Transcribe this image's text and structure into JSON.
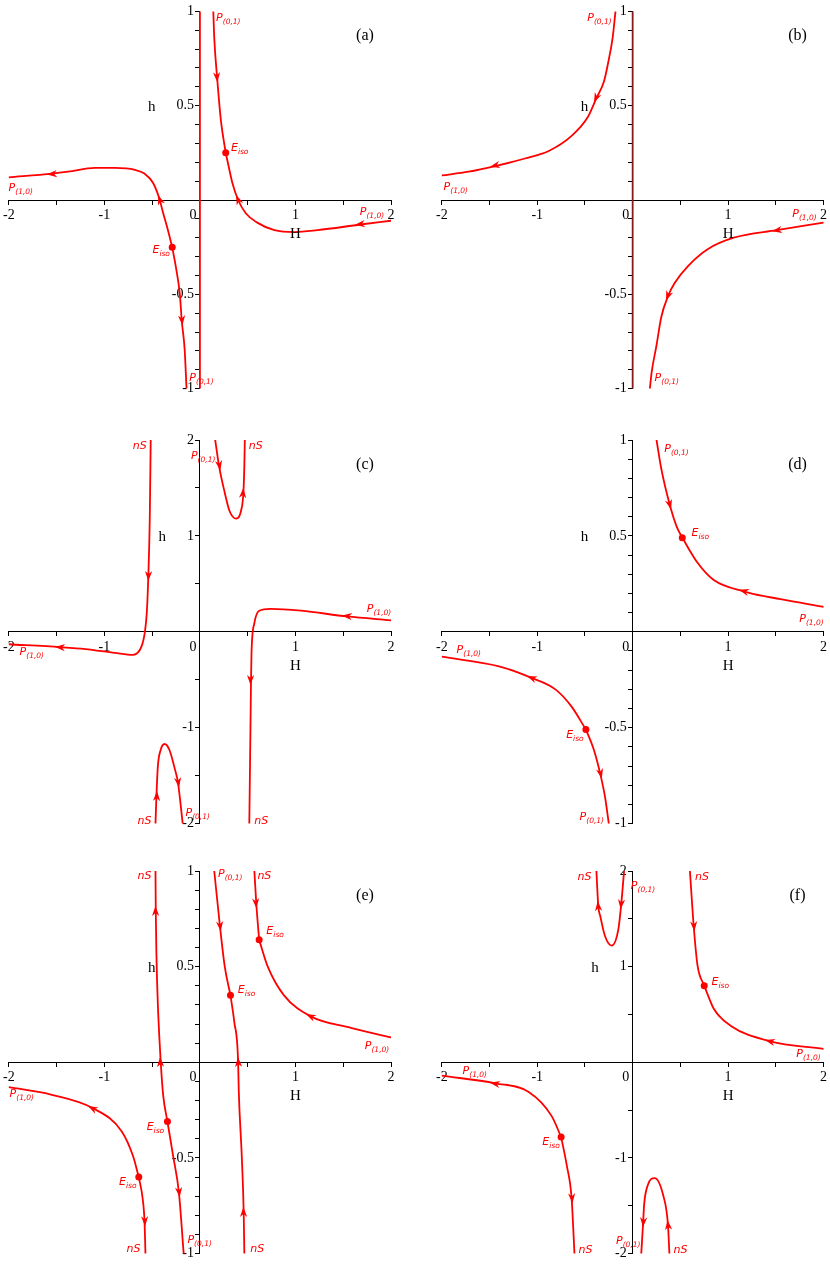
{
  "chart_data": [
    {
      "type": "line",
      "title": "(a)",
      "xlabel": "H",
      "ylabel": "h",
      "xlim": [
        -2,
        2
      ],
      "ylim": [
        -1,
        1
      ],
      "xticks": [
        -2,
        {
          "value": -1.5,
          "label": null
        },
        -1,
        {
          "value": -0.5,
          "label": null
        },
        0,
        {
          "value": 0.5,
          "label": null
        },
        1,
        {
          "value": 1.5,
          "label": null
        },
        2
      ],
      "yticks": [
        -1,
        {
          "value": -0.9,
          "label": null
        },
        {
          "value": -0.8,
          "label": null
        },
        {
          "value": -0.7,
          "label": null
        },
        {
          "value": -0.6,
          "label": null
        },
        -0.5,
        {
          "value": -0.4,
          "label": null
        },
        {
          "value": -0.3,
          "label": null
        },
        {
          "value": -0.2,
          "label": null
        },
        {
          "value": -0.1,
          "label": null
        },
        {
          "value": 0.1,
          "label": null
        },
        {
          "value": 0.2,
          "label": null
        },
        {
          "value": 0.3,
          "label": null
        },
        {
          "value": 0.4,
          "label": null
        },
        0.5,
        {
          "value": 0.6,
          "label": null
        },
        {
          "value": 0.7,
          "label": null
        },
        {
          "value": 0.8,
          "label": null
        },
        {
          "value": 0.9,
          "label": null
        },
        1
      ],
      "series": [
        {
          "color": "#ff0000",
          "x": [
            -0.29,
            -0.34,
            -0.39,
            -0.42,
            -0.49,
            -0.58,
            -0.68,
            -0.89,
            -1.1,
            -1.38,
            -1.55,
            -2
          ],
          "values": [
            -0.25,
            -0.15,
            -0.06,
            0,
            0.09,
            0.14,
            0.16,
            0.17,
            0.17,
            0.15,
            0.14,
            0.12
          ]
        },
        {
          "color": "#ff0000",
          "x": [
            -0.29,
            -0.25,
            -0.21,
            -0.19,
            -0.16,
            -0.14
          ],
          "values": [
            -0.25,
            -0.36,
            -0.5,
            -0.64,
            -0.79,
            -1
          ]
        },
        {
          "color": "#ff0000",
          "x": [
            0.14,
            0.15,
            0.18,
            0.22,
            0.27
          ],
          "values": [
            1,
            0.86,
            0.65,
            0.42,
            0.25
          ]
        },
        {
          "color": "#ff0000",
          "x": [
            2,
            1.68,
            1.23,
            0.99,
            0.78,
            0.6,
            0.48,
            0.4,
            0.34,
            0.3,
            0.27
          ],
          "values": [
            -0.11,
            -0.13,
            -0.16,
            -0.17,
            -0.16,
            -0.12,
            -0.07,
            0,
            0.09,
            0.18,
            0.25
          ]
        },
        {
          "type": "scatter",
          "marker": "circle",
          "color": "#ff0000",
          "x": [
            -0.29,
            0.27
          ],
          "values": [
            -0.25,
            0.25
          ]
        },
        {
          "color": "#ff0000",
          "x": [
            0,
            0
          ],
          "values": [
            -1,
            1
          ]
        }
      ],
      "annotations": [
        {
          "text": "P$_{(0,1)}$",
          "x": 0.14,
          "y": 1
        },
        {
          "text": "E$_{iso}$",
          "x": 0.27,
          "y": 0.25
        },
        {
          "text": "P$_{(1,0)}$",
          "x": -2,
          "y": 0.12
        },
        {
          "text": "P$_{(1,0)}$",
          "x": 2,
          "y": -0.11
        },
        {
          "text": "E$_{iso}$",
          "x": -0.29,
          "y": -0.25
        },
        {
          "text": "P$_{(0,1)}$",
          "x": -0.14,
          "y": -1
        }
      ]
    },
    {
      "type": "line",
      "title": "(b)",
      "xlabel": "H",
      "ylabel": "h",
      "xlim": [
        -2,
        2
      ],
      "ylim": [
        -1,
        1
      ],
      "xticks": [
        -2,
        {
          "value": -1.5,
          "label": null
        },
        -1,
        {
          "value": -0.5,
          "label": null
        },
        0,
        {
          "value": 0.5,
          "label": null
        },
        1,
        {
          "value": 1.5,
          "label": null
        },
        2
      ],
      "yticks": [
        -1,
        {
          "value": -0.9,
          "label": null
        },
        {
          "value": -0.8,
          "label": null
        },
        {
          "value": -0.7,
          "label": null
        },
        {
          "value": -0.6,
          "label": null
        },
        -0.5,
        {
          "value": -0.4,
          "label": null
        },
        {
          "value": -0.3,
          "label": null
        },
        {
          "value": -0.2,
          "label": null
        },
        {
          "value": -0.1,
          "label": null
        },
        {
          "value": 0.1,
          "label": null
        },
        {
          "value": 0.2,
          "label": null
        },
        {
          "value": 0.3,
          "label": null
        },
        {
          "value": 0.4,
          "label": null
        },
        0.5,
        {
          "value": 0.6,
          "label": null
        },
        {
          "value": 0.7,
          "label": null
        },
        {
          "value": 0.8,
          "label": null
        },
        {
          "value": 0.9,
          "label": null
        },
        1
      ],
      "series": [
        {
          "color": "#ff0000",
          "x": [
            -0.18,
            -0.21,
            -0.26,
            -0.3,
            -0.38,
            -0.47,
            -0.64,
            -0.88,
            -1.13,
            -1.44,
            -1.72,
            -2
          ],
          "values": [
            1,
            0.86,
            0.72,
            0.63,
            0.54,
            0.44,
            0.34,
            0.26,
            0.22,
            0.18,
            0.15,
            0.13
          ]
        },
        {
          "color": "#ff0000",
          "x": [
            2,
            1.51,
            1.06,
            0.79,
            0.58,
            0.44,
            0.37,
            0.3,
            0.25,
            0.2,
            0.18
          ],
          "values": [
            -0.12,
            -0.16,
            -0.2,
            -0.26,
            -0.35,
            -0.44,
            -0.51,
            -0.62,
            -0.77,
            -0.91,
            -1
          ]
        },
        {
          "color": "#8b1a1a",
          "x": [
            0,
            0
          ],
          "values": [
            -1,
            1
          ]
        }
      ],
      "annotations": [
        {
          "text": "P$_{(0,1)}$",
          "x": -0.18,
          "y": 1
        },
        {
          "text": "P$_{(1,0)}$",
          "x": -2,
          "y": 0.13
        },
        {
          "text": "P$_{(1,0)}$",
          "x": 2,
          "y": -0.12
        },
        {
          "text": "P$_{(0,1)}$",
          "x": 0.18,
          "y": -1
        }
      ]
    },
    {
      "type": "line",
      "title": "(c)",
      "xlabel": "H",
      "ylabel": "h",
      "xlim": [
        -2,
        2
      ],
      "ylim": [
        -2,
        2
      ],
      "xticks": [
        -2,
        {
          "value": -1.5,
          "label": null
        },
        -1,
        {
          "value": -0.5,
          "label": null
        },
        0,
        {
          "value": 0.5,
          "label": null
        },
        1,
        {
          "value": 1.5,
          "label": null
        },
        2
      ],
      "yticks": [
        -2,
        {
          "value": -1.5,
          "label": null
        },
        -1,
        {
          "value": -0.5,
          "label": null
        },
        {
          "value": 0.5,
          "label": null
        },
        1,
        {
          "value": 1.5,
          "label": null
        },
        2
      ],
      "series": [
        {
          "color": "#ff0000",
          "x": [
            -0.515,
            -0.525,
            -0.54,
            -0.556,
            -0.576,
            -0.61,
            -0.7,
            -0.89,
            -1.2,
            -1.46,
            -2
          ],
          "values": [
            2,
            1.17,
            0.58,
            0.2,
            0,
            -0.15,
            -0.24,
            -0.22,
            -0.18,
            -0.16,
            -0.13
          ]
        },
        {
          "color": "#ff0000",
          "x": [
            0.16,
            0.2,
            0.26,
            0.31,
            0.38,
            0.43,
            0.455,
            0.465,
            0.47
          ],
          "values": [
            2,
            1.73,
            1.45,
            1.26,
            1.18,
            1.26,
            1.45,
            1.73,
            2
          ]
        },
        {
          "color": "#ff0000",
          "x": [
            2,
            1.54,
            1.06,
            0.74,
            0.62,
            0.57,
            0.54,
            0.535,
            0.528,
            0.517
          ],
          "values": [
            0.12,
            0.16,
            0.22,
            0.24,
            0.22,
            0.09,
            -0.22,
            -0.5,
            -1.09,
            -2
          ]
        },
        {
          "color": "#ff0000",
          "x": [
            -0.465,
            -0.455,
            -0.44,
            -0.41,
            -0.37,
            -0.32,
            -0.26,
            -0.23,
            -0.18
          ],
          "values": [
            -2,
            -1.71,
            -1.4,
            -1.23,
            -1.17,
            -1.23,
            -1.44,
            -1.57,
            -2
          ]
        }
      ],
      "annotations": [
        {
          "text": "nS",
          "x": -0.515,
          "y": 2
        },
        {
          "text": "P$_{(0,1)}$",
          "x": 0.16,
          "y": 2
        },
        {
          "text": "nS",
          "x": 0.47,
          "y": 2
        },
        {
          "text": "P$_{(1,0)}$",
          "x": 2,
          "y": 0.12
        },
        {
          "text": "P$_{(1,0)}$",
          "x": -2,
          "y": -0.13
        },
        {
          "text": "nS",
          "x": -0.465,
          "y": -2
        },
        {
          "text": "P$_{(0,1)}$",
          "x": -0.18,
          "y": -2
        },
        {
          "text": "nS",
          "x": 0.517,
          "y": -2
        }
      ]
    },
    {
      "type": "line",
      "title": "(d)",
      "xlabel": "H",
      "ylabel": "h",
      "xlim": [
        -2,
        2
      ],
      "ylim": [
        -1,
        1
      ],
      "xticks": [
        -2,
        {
          "value": -1.5,
          "label": null
        },
        -1,
        {
          "value": -0.5,
          "label": null
        },
        0,
        {
          "value": 0.5,
          "label": null
        },
        1,
        {
          "value": 1.5,
          "label": null
        },
        2
      ],
      "yticks": [
        -1,
        {
          "value": -0.9,
          "label": null
        },
        {
          "value": -0.8,
          "label": null
        },
        {
          "value": -0.7,
          "label": null
        },
        {
          "value": -0.6,
          "label": null
        },
        -0.5,
        {
          "value": -0.4,
          "label": null
        },
        {
          "value": -0.3,
          "label": null
        },
        {
          "value": -0.2,
          "label": null
        },
        {
          "value": -0.1,
          "label": null
        },
        {
          "value": 0.1,
          "label": null
        },
        {
          "value": 0.2,
          "label": null
        },
        {
          "value": 0.3,
          "label": null
        },
        {
          "value": 0.4,
          "label": null
        },
        0.5,
        {
          "value": 0.6,
          "label": null
        },
        {
          "value": 0.7,
          "label": null
        },
        {
          "value": 0.8,
          "label": null
        },
        {
          "value": 0.9,
          "label": null
        },
        1
      ],
      "series": [
        {
          "color": "#ff0000",
          "x": [
            0.25,
            0.3,
            0.39,
            0.46,
            0.52
          ],
          "values": [
            1,
            0.85,
            0.66,
            0.55,
            0.49
          ]
        },
        {
          "color": "#ff0000",
          "x": [
            2,
            1.55,
            1.17,
            0.85,
            0.68,
            0.52
          ],
          "values": [
            0.13,
            0.17,
            0.21,
            0.27,
            0.36,
            0.49
          ]
        },
        {
          "color": "#ff0000",
          "x": [
            -0.49,
            -0.64,
            -0.81,
            -1.06,
            -1.4,
            -2
          ],
          "values": [
            -0.51,
            -0.39,
            -0.3,
            -0.24,
            -0.18,
            -0.13
          ]
        },
        {
          "color": "#ff0000",
          "x": [
            -0.49,
            -0.41,
            -0.34,
            -0.29,
            -0.25
          ],
          "values": [
            -0.51,
            -0.61,
            -0.74,
            -0.86,
            -1
          ]
        },
        {
          "type": "scatter",
          "marker": "circle",
          "color": "#ff0000",
          "x": [
            0.52,
            -0.49
          ],
          "values": [
            0.49,
            -0.51
          ]
        }
      ],
      "annotations": [
        {
          "text": "P$_{(0,1)}$",
          "x": 0.25,
          "y": 1
        },
        {
          "text": "E$_{iso}$",
          "x": 0.52,
          "y": 0.49
        },
        {
          "text": "P$_{(1,0)}$",
          "x": 2,
          "y": 0.13
        },
        {
          "text": "P$_{(1,0)}$",
          "x": -2,
          "y": -0.13
        },
        {
          "text": "E$_{iso}$",
          "x": -0.49,
          "y": -0.51
        },
        {
          "text": "P$_{(0,1)}$",
          "x": -0.25,
          "y": -1
        }
      ]
    },
    {
      "type": "line",
      "title": "(e)",
      "xlabel": "H",
      "ylabel": "h",
      "xlim": [
        -2,
        2
      ],
      "ylim": [
        -1,
        1
      ],
      "xticks": [
        -2,
        {
          "value": -1.5,
          "label": null
        },
        -1,
        {
          "value": -0.5,
          "label": null
        },
        0,
        {
          "value": 0.5,
          "label": null
        },
        1,
        {
          "value": 1.5,
          "label": null
        },
        2
      ],
      "yticks": [
        -1,
        {
          "value": -0.9,
          "label": null
        },
        {
          "value": -0.8,
          "label": null
        },
        {
          "value": -0.7,
          "label": null
        },
        {
          "value": -0.6,
          "label": null
        },
        -0.5,
        {
          "value": -0.4,
          "label": null
        },
        {
          "value": -0.3,
          "label": null
        },
        {
          "value": -0.2,
          "label": null
        },
        {
          "value": -0.1,
          "label": null
        },
        {
          "value": 0.1,
          "label": null
        },
        {
          "value": 0.2,
          "label": null
        },
        {
          "value": 0.3,
          "label": null
        },
        {
          "value": 0.4,
          "label": null
        },
        0.5,
        {
          "value": 0.6,
          "label": null
        },
        {
          "value": 0.7,
          "label": null
        },
        {
          "value": 0.8,
          "label": null
        },
        {
          "value": 0.9,
          "label": null
        },
        1
      ],
      "series": [
        {
          "color": "#ff0000",
          "x": [
            -0.64,
            -0.7,
            -0.82,
            -1.12,
            -1.55,
            -2
          ],
          "values": [
            -0.6,
            -0.49,
            -0.36,
            -0.24,
            -0.17,
            -0.13
          ]
        },
        {
          "color": "#ff0000",
          "x": [
            -0.64,
            -0.6,
            -0.58,
            -0.57
          ],
          "values": [
            -0.6,
            -0.71,
            -0.83,
            -1
          ]
        },
        {
          "color": "#ff0000",
          "x": [
            -0.34,
            -0.385,
            -0.41,
            -0.44,
            -0.455,
            -0.462,
            -0.465
          ],
          "values": [
            -0.31,
            -0.17,
            0,
            0.3,
            0.56,
            0.79,
            1
          ]
        },
        {
          "color": "#ff0000",
          "x": [
            -0.34,
            -0.28,
            -0.22,
            -0.17
          ],
          "values": [
            -0.31,
            -0.49,
            -0.68,
            -1
          ]
        },
        {
          "color": "#ff0000",
          "x": [
            0.15,
            0.21,
            0.26,
            0.32
          ],
          "values": [
            1,
            0.71,
            0.5,
            0.35
          ]
        },
        {
          "color": "#ff0000",
          "x": [
            0.465,
            0.458,
            0.438,
            0.406,
            0.4,
            0.36,
            0.32
          ],
          "values": [
            -1,
            -0.78,
            -0.49,
            -0.14,
            0,
            0.21,
            0.35
          ]
        },
        {
          "color": "#ff0000",
          "x": [
            0.57,
            0.59,
            0.62
          ],
          "values": [
            1,
            0.83,
            0.64
          ]
        },
        {
          "color": "#ff0000",
          "x": [
            2,
            1.58,
            1.16,
            0.88,
            0.71,
            0.62
          ],
          "values": [
            0.13,
            0.18,
            0.24,
            0.35,
            0.5,
            0.64
          ]
        },
        {
          "type": "scatter",
          "marker": "circle",
          "color": "#ff0000",
          "x": [
            -0.64,
            -0.34,
            0.32,
            0.62
          ],
          "values": [
            -0.6,
            -0.31,
            0.35,
            0.64
          ]
        }
      ],
      "annotations": [
        {
          "text": "nS",
          "x": -0.465,
          "y": 1
        },
        {
          "text": "P$_{(0,1)}$",
          "x": 0.15,
          "y": 1
        },
        {
          "text": "nS",
          "x": 0.57,
          "y": 1
        },
        {
          "text": "E$_{iso}$",
          "x": 0.62,
          "y": 0.64
        },
        {
          "text": "E$_{iso}$",
          "x": 0.32,
          "y": 0.35
        },
        {
          "text": "P$_{(1,0)}$",
          "x": 2,
          "y": 0.13
        },
        {
          "text": "P$_{(1,0)}$",
          "x": -2,
          "y": -0.13
        },
        {
          "text": "E$_{iso}$",
          "x": -0.34,
          "y": -0.31
        },
        {
          "text": "E$_{iso}$",
          "x": -0.64,
          "y": -0.6
        },
        {
          "text": "nS",
          "x": -0.57,
          "y": -1
        },
        {
          "text": "P$_{(0,1)}$",
          "x": -0.17,
          "y": -1
        },
        {
          "text": "nS",
          "x": 0.465,
          "y": -1
        }
      ]
    },
    {
      "type": "line",
      "title": "(f)",
      "xlabel": "H",
      "ylabel": "h",
      "xlim": [
        -2,
        2
      ],
      "ylim": [
        -2,
        2
      ],
      "xticks": [
        -2,
        {
          "value": -1.5,
          "label": null
        },
        -1,
        {
          "value": -0.5,
          "label": null
        },
        0,
        {
          "value": 0.5,
          "label": null
        },
        1,
        {
          "value": 1.5,
          "label": null
        },
        2
      ],
      "yticks": [
        -2,
        {
          "value": -1.5,
          "label": null
        },
        -1,
        {
          "value": -0.5,
          "label": null
        },
        {
          "value": 0.5,
          "label": null
        },
        1,
        {
          "value": 1.5,
          "label": null
        },
        2
      ],
      "series": [
        {
          "color": "#ff0000",
          "x": [
            -0.09,
            -0.12,
            -0.15,
            -0.22,
            -0.29,
            -0.34,
            -0.36,
            -0.38
          ],
          "values": [
            2,
            1.65,
            1.39,
            1.22,
            1.32,
            1.53,
            1.63,
            2
          ]
        },
        {
          "color": "#ff0000",
          "x": [
            0.6,
            0.64,
            0.68,
            0.75
          ],
          "values": [
            2,
            1.42,
            1.01,
            0.8
          ]
        },
        {
          "color": "#ff0000",
          "x": [
            2,
            1.44,
            1.03,
            0.85,
            0.75
          ],
          "values": [
            0.14,
            0.22,
            0.38,
            0.56,
            0.8
          ]
        },
        {
          "color": "#ff0000",
          "x": [
            -0.75,
            -0.85,
            -1.09,
            -1.44,
            -2
          ],
          "values": [
            -0.78,
            -0.56,
            -0.31,
            -0.22,
            -0.14
          ]
        },
        {
          "color": "#ff0000",
          "x": [
            -0.75,
            -0.69,
            -0.64,
            -0.61
          ],
          "values": [
            -0.78,
            -1.08,
            -1.42,
            -2
          ]
        },
        {
          "color": "#ff0000",
          "x": [
            0.385,
            0.37,
            0.32,
            0.23,
            0.16,
            0.12,
            0.11,
            0.09
          ],
          "values": [
            -2,
            -1.7,
            -1.39,
            -1.21,
            -1.28,
            -1.49,
            -1.67,
            -2
          ]
        },
        {
          "type": "scatter",
          "marker": "circle",
          "color": "#ff0000",
          "x": [
            0.75,
            -0.75
          ],
          "values": [
            0.8,
            -0.78
          ]
        }
      ],
      "annotations": [
        {
          "text": "nS",
          "x": -0.38,
          "y": 2
        },
        {
          "text": "P$_{(0,1)}$",
          "x": -0.09,
          "y": 2
        },
        {
          "text": "nS",
          "x": 0.6,
          "y": 2
        },
        {
          "text": "E$_{iso}$",
          "x": 0.75,
          "y": 0.8
        },
        {
          "text": "P$_{(1,0)}$",
          "x": 2,
          "y": 0.14
        },
        {
          "text": "P$_{(1,0)}$",
          "x": -2,
          "y": -0.14
        },
        {
          "text": "E$_{iso}$",
          "x": -0.75,
          "y": -0.78
        },
        {
          "text": "P$_{(0,1)}$",
          "x": 0.09,
          "y": -2
        },
        {
          "text": "nS",
          "x": 0.385,
          "y": -2
        },
        {
          "text": "nS",
          "x": -0.61,
          "y": -2
        }
      ]
    }
  ]
}
